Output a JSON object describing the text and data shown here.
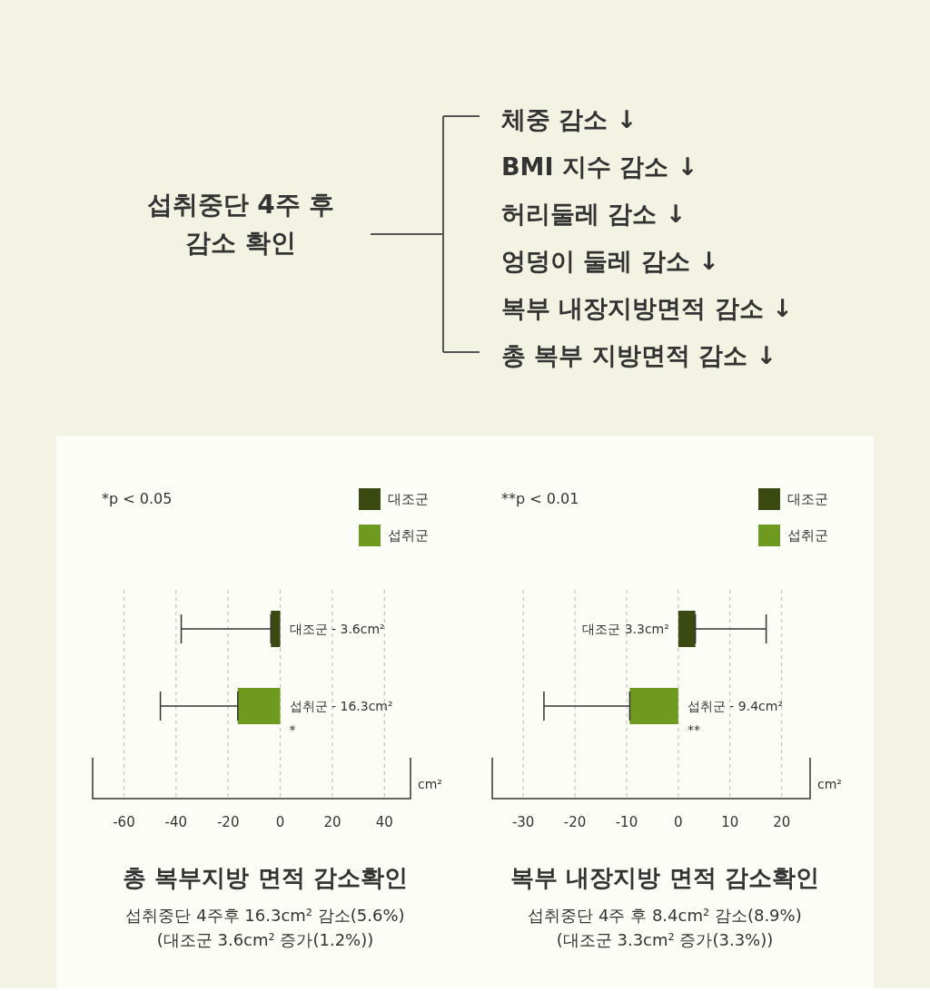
{
  "chart_data": [
    {
      "type": "other",
      "title": "섭취중단 4주 후\n감소 확인",
      "annotations": [
        "체중 감소 ↓",
        "BMI 지수 감소 ↓",
        "허리둘레 감소 ↓",
        "엉덩이 둘레 감소 ↓",
        "복부 내장지방면적 감소 ↓",
        "총 복부 지방면적 감소 ↓"
      ]
    },
    {
      "type": "bar",
      "orientation": "horizontal",
      "title": "총 복부지방 면적 감소확인",
      "subtitle": "섭취중단 4주후 16.3cm² 감소(5.6%)\n(대조군 3.6cm² 증가(1.2%))",
      "xlabel": "cm²",
      "categories": [
        null,
        null
      ],
      "series": [
        {
          "name": "대조군",
          "color": "#3b4a10",
          "values": [
            -3.6,
            null
          ],
          "errors": [
            [
              -38,
              -3.6
            ],
            null
          ],
          "value_labels": [
            "대조군 - 3.6cm²",
            null
          ]
        },
        {
          "name": "섭취군",
          "color": "#6d9a1f",
          "values": [
            null,
            -16.3
          ],
          "errors": [
            null,
            [
              -46,
              -16.3
            ]
          ],
          "value_labels": [
            null,
            "섭취군 - 16.3cm²"
          ]
        }
      ],
      "xlim": [
        -72,
        50
      ],
      "xticks": [
        -60,
        -40,
        -20,
        0,
        20,
        40
      ],
      "grid": "x",
      "legend": "top right",
      "annotations": [
        "*p < 0.05",
        "*"
      ]
    },
    {
      "type": "bar",
      "orientation": "horizontal",
      "title": "복부 내장지방 면적 감소확인",
      "subtitle": "섭취중단 4주 후 8.4cm² 감소(8.9%)\n(대조군 3.3cm² 증가(3.3%))",
      "xlabel": "cm²",
      "categories": [
        null,
        null
      ],
      "series": [
        {
          "name": "대조군",
          "color": "#3b4a10",
          "values": [
            3.3,
            null
          ],
          "errors": [
            [
              3.3,
              17
            ],
            null
          ],
          "value_labels": [
            "대조군 3.3cm²",
            null
          ]
        },
        {
          "name": "섭취군",
          "color": "#6d9a1f",
          "values": [
            null,
            -9.4
          ],
          "errors": [
            null,
            [
              -26,
              -9.4
            ]
          ],
          "value_labels": [
            null,
            "섭취군 - 9.4cm²"
          ]
        }
      ],
      "xlim": [
        -36,
        25.5
      ],
      "xticks": [
        -30,
        -20,
        -10,
        0,
        10,
        20
      ],
      "grid": "x",
      "legend": "top right",
      "annotations": [
        "**p < 0.01",
        "**"
      ]
    }
  ]
}
